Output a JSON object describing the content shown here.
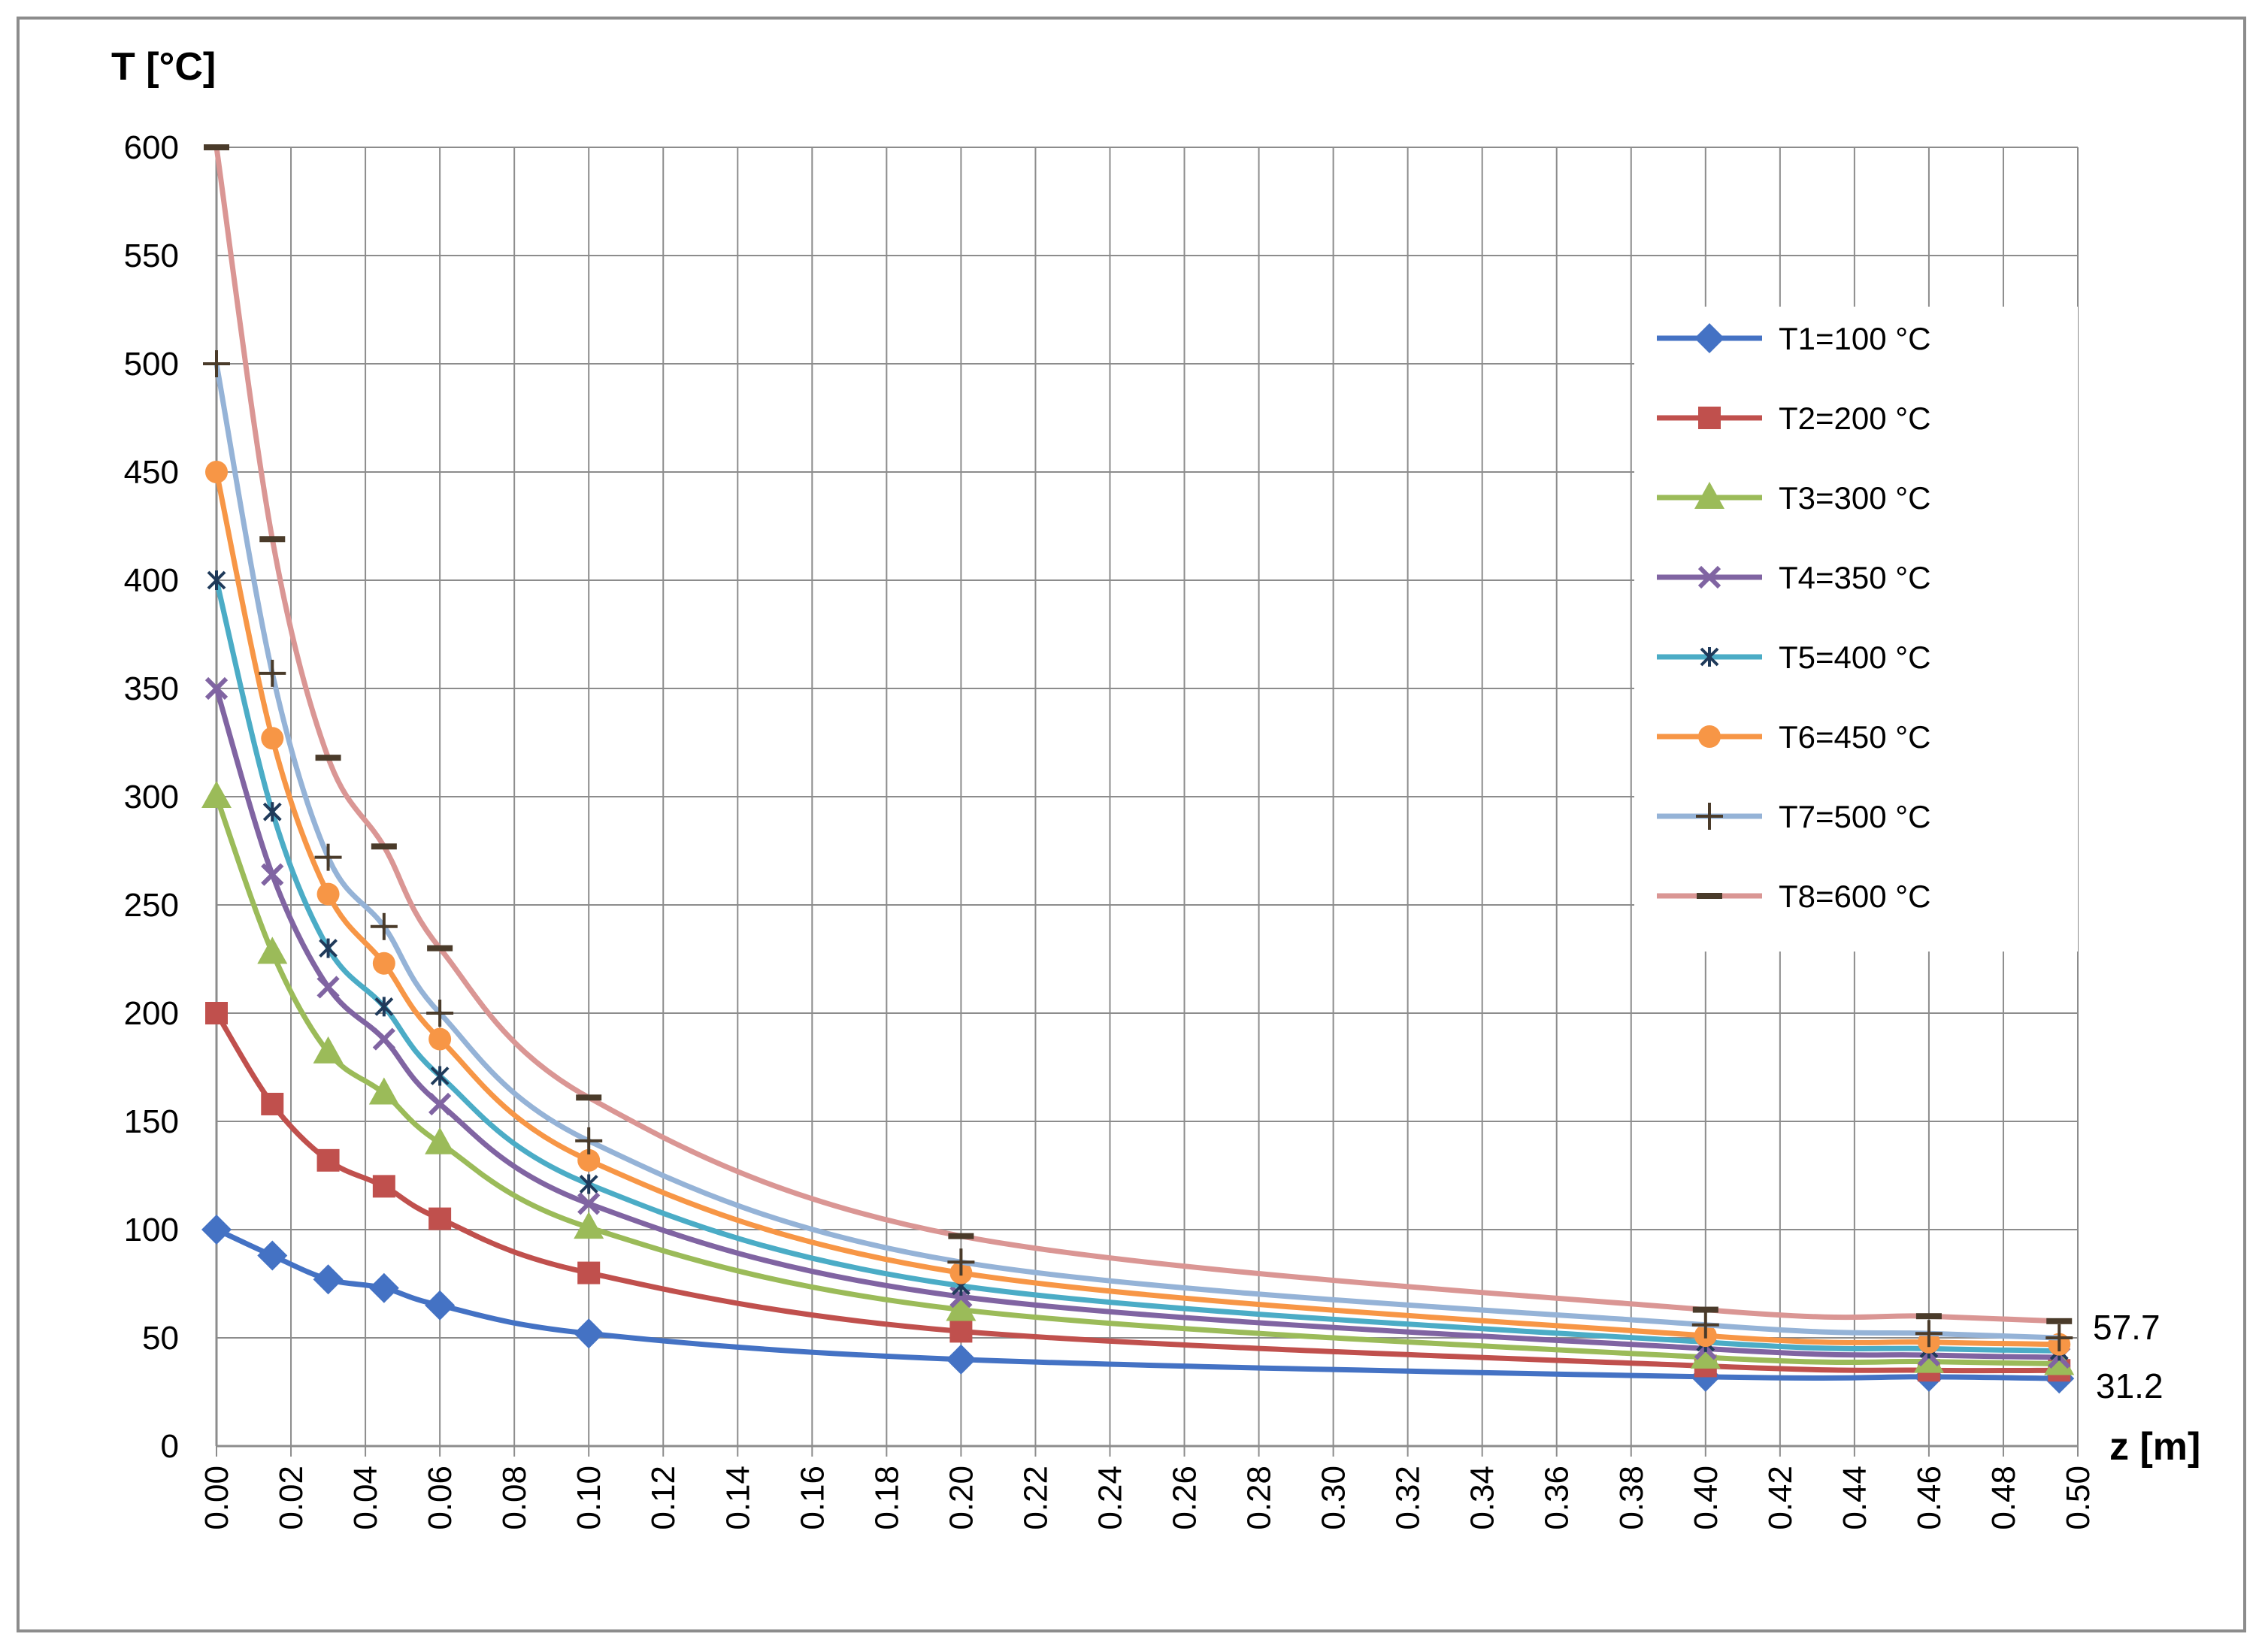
{
  "chart_data": {
    "type": "line",
    "title": "",
    "xlabel": "z [m]",
    "ylabel": "T [°C]",
    "xlim": [
      0,
      0.5
    ],
    "ylim": [
      0,
      600
    ],
    "x_ticks": [
      "0.00",
      "0.02",
      "0.04",
      "0.06",
      "0.08",
      "0.10",
      "0.12",
      "0.14",
      "0.16",
      "0.18",
      "0.20",
      "0.22",
      "0.24",
      "0.26",
      "0.28",
      "0.30",
      "0.32",
      "0.34",
      "0.36",
      "0.38",
      "0.40",
      "0.42",
      "0.44",
      "0.46",
      "0.48",
      "0.50"
    ],
    "y_ticks": [
      "0",
      "50",
      "100",
      "150",
      "200",
      "250",
      "300",
      "350",
      "400",
      "450",
      "500",
      "550",
      "600"
    ],
    "grid": true,
    "legend_position": "top-right",
    "x": [
      0,
      0.015,
      0.03,
      0.045,
      0.06,
      0.1,
      0.2,
      0.4,
      0.46,
      0.495
    ],
    "series": [
      {
        "name": "T1=100 °C",
        "color": "#4472c4",
        "marker": "diamond",
        "values": [
          100,
          88,
          77,
          73,
          65,
          52,
          40,
          32,
          32,
          31.2
        ]
      },
      {
        "name": "T2=200 °C",
        "color": "#c0504d",
        "marker": "square",
        "values": [
          200,
          158,
          132,
          120,
          105,
          80,
          53,
          37,
          35,
          35
        ]
      },
      {
        "name": "T3=300 °C",
        "color": "#9bbb59",
        "marker": "triangle",
        "values": [
          300,
          228,
          182,
          163,
          140,
          101,
          63,
          41,
          39,
          38
        ]
      },
      {
        "name": "T4=350 °C",
        "color": "#8064a2",
        "marker": "x",
        "values": [
          350,
          264,
          212,
          188,
          158,
          112,
          69,
          45,
          42,
          41
        ]
      },
      {
        "name": "T5=400 °C",
        "color": "#4bacc6",
        "marker": "star",
        "values": [
          400,
          293,
          230,
          203,
          171,
          121,
          74,
          48,
          45,
          44
        ]
      },
      {
        "name": "T6=450 °C",
        "color": "#f79646",
        "marker": "circle",
        "values": [
          450,
          327,
          255,
          223,
          188,
          132,
          80,
          51,
          48,
          47
        ]
      },
      {
        "name": "T7=500 °C",
        "color": "#95b3d7",
        "marker": "plus",
        "values": [
          500,
          357,
          272,
          240,
          200,
          141,
          85,
          56,
          52,
          50
        ]
      },
      {
        "name": "T8=600 °C",
        "color": "#da9694",
        "marker": "dash",
        "values": [
          600,
          419,
          318,
          277,
          230,
          161,
          97,
          63,
          60,
          57.7
        ]
      }
    ],
    "annotations": [
      "57.7",
      "31.2"
    ]
  }
}
